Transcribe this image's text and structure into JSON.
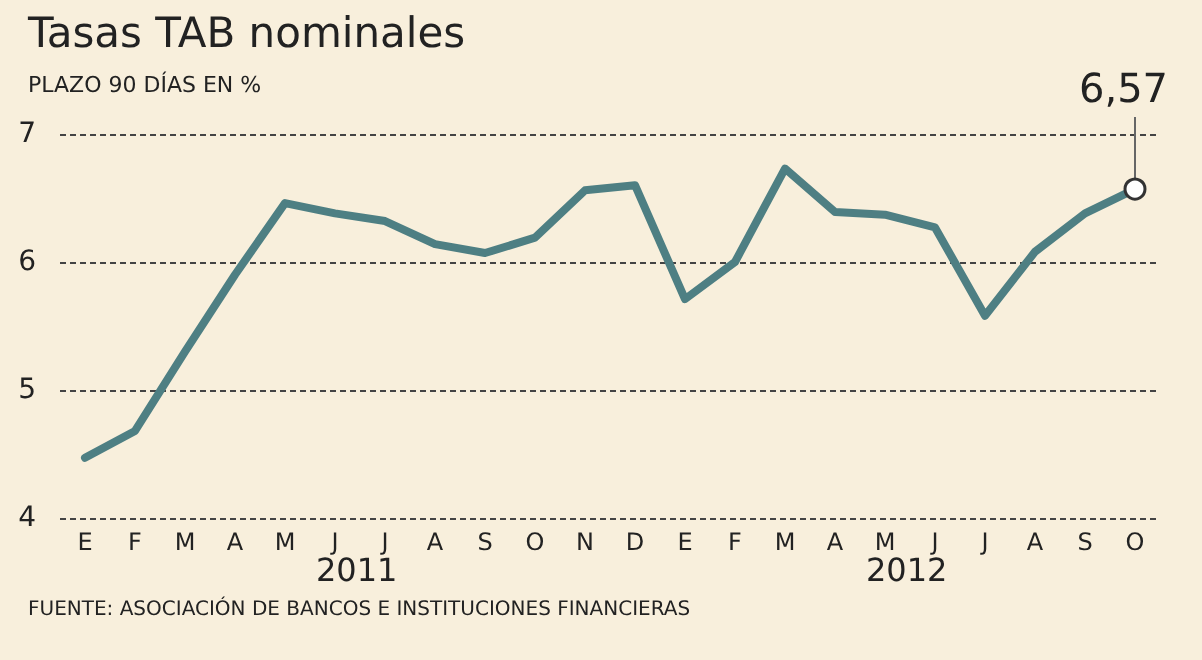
{
  "chart_data": {
    "type": "line",
    "title": "Tasas TAB nominales",
    "subtitle": "PLAZO 90 DÍAS EN %",
    "categories": [
      "E",
      "F",
      "M",
      "A",
      "M",
      "J",
      "J",
      "A",
      "S",
      "O",
      "N",
      "D",
      "E",
      "F",
      "M",
      "A",
      "M",
      "J",
      "J",
      "A",
      "S",
      "O"
    ],
    "series": [
      {
        "color": "#4e7f83",
        "values": [
          4.47,
          4.68,
          5.3,
          5.9,
          6.46,
          6.38,
          6.32,
          6.14,
          6.07,
          6.19,
          6.56,
          6.6,
          5.71,
          6.0,
          6.73,
          6.39,
          6.37,
          6.27,
          5.58,
          6.08,
          6.38,
          6.57
        ],
        "value_labels": [
          null,
          null,
          null,
          null,
          null,
          null,
          null,
          null,
          null,
          null,
          null,
          null,
          null,
          null,
          null,
          null,
          null,
          null,
          null,
          null,
          null,
          "6,57"
        ]
      }
    ],
    "annotations": [
      "2011",
      "2012",
      "FUENTE: ASOCIACIÓN DE BANCOS E INSTITUCIONES FINANCIERAS"
    ],
    "ylim": [
      4,
      7
    ],
    "yticks": [
      4,
      5,
      6,
      7
    ],
    "grid": "y",
    "marker": "none",
    "line_style": "solid"
  }
}
